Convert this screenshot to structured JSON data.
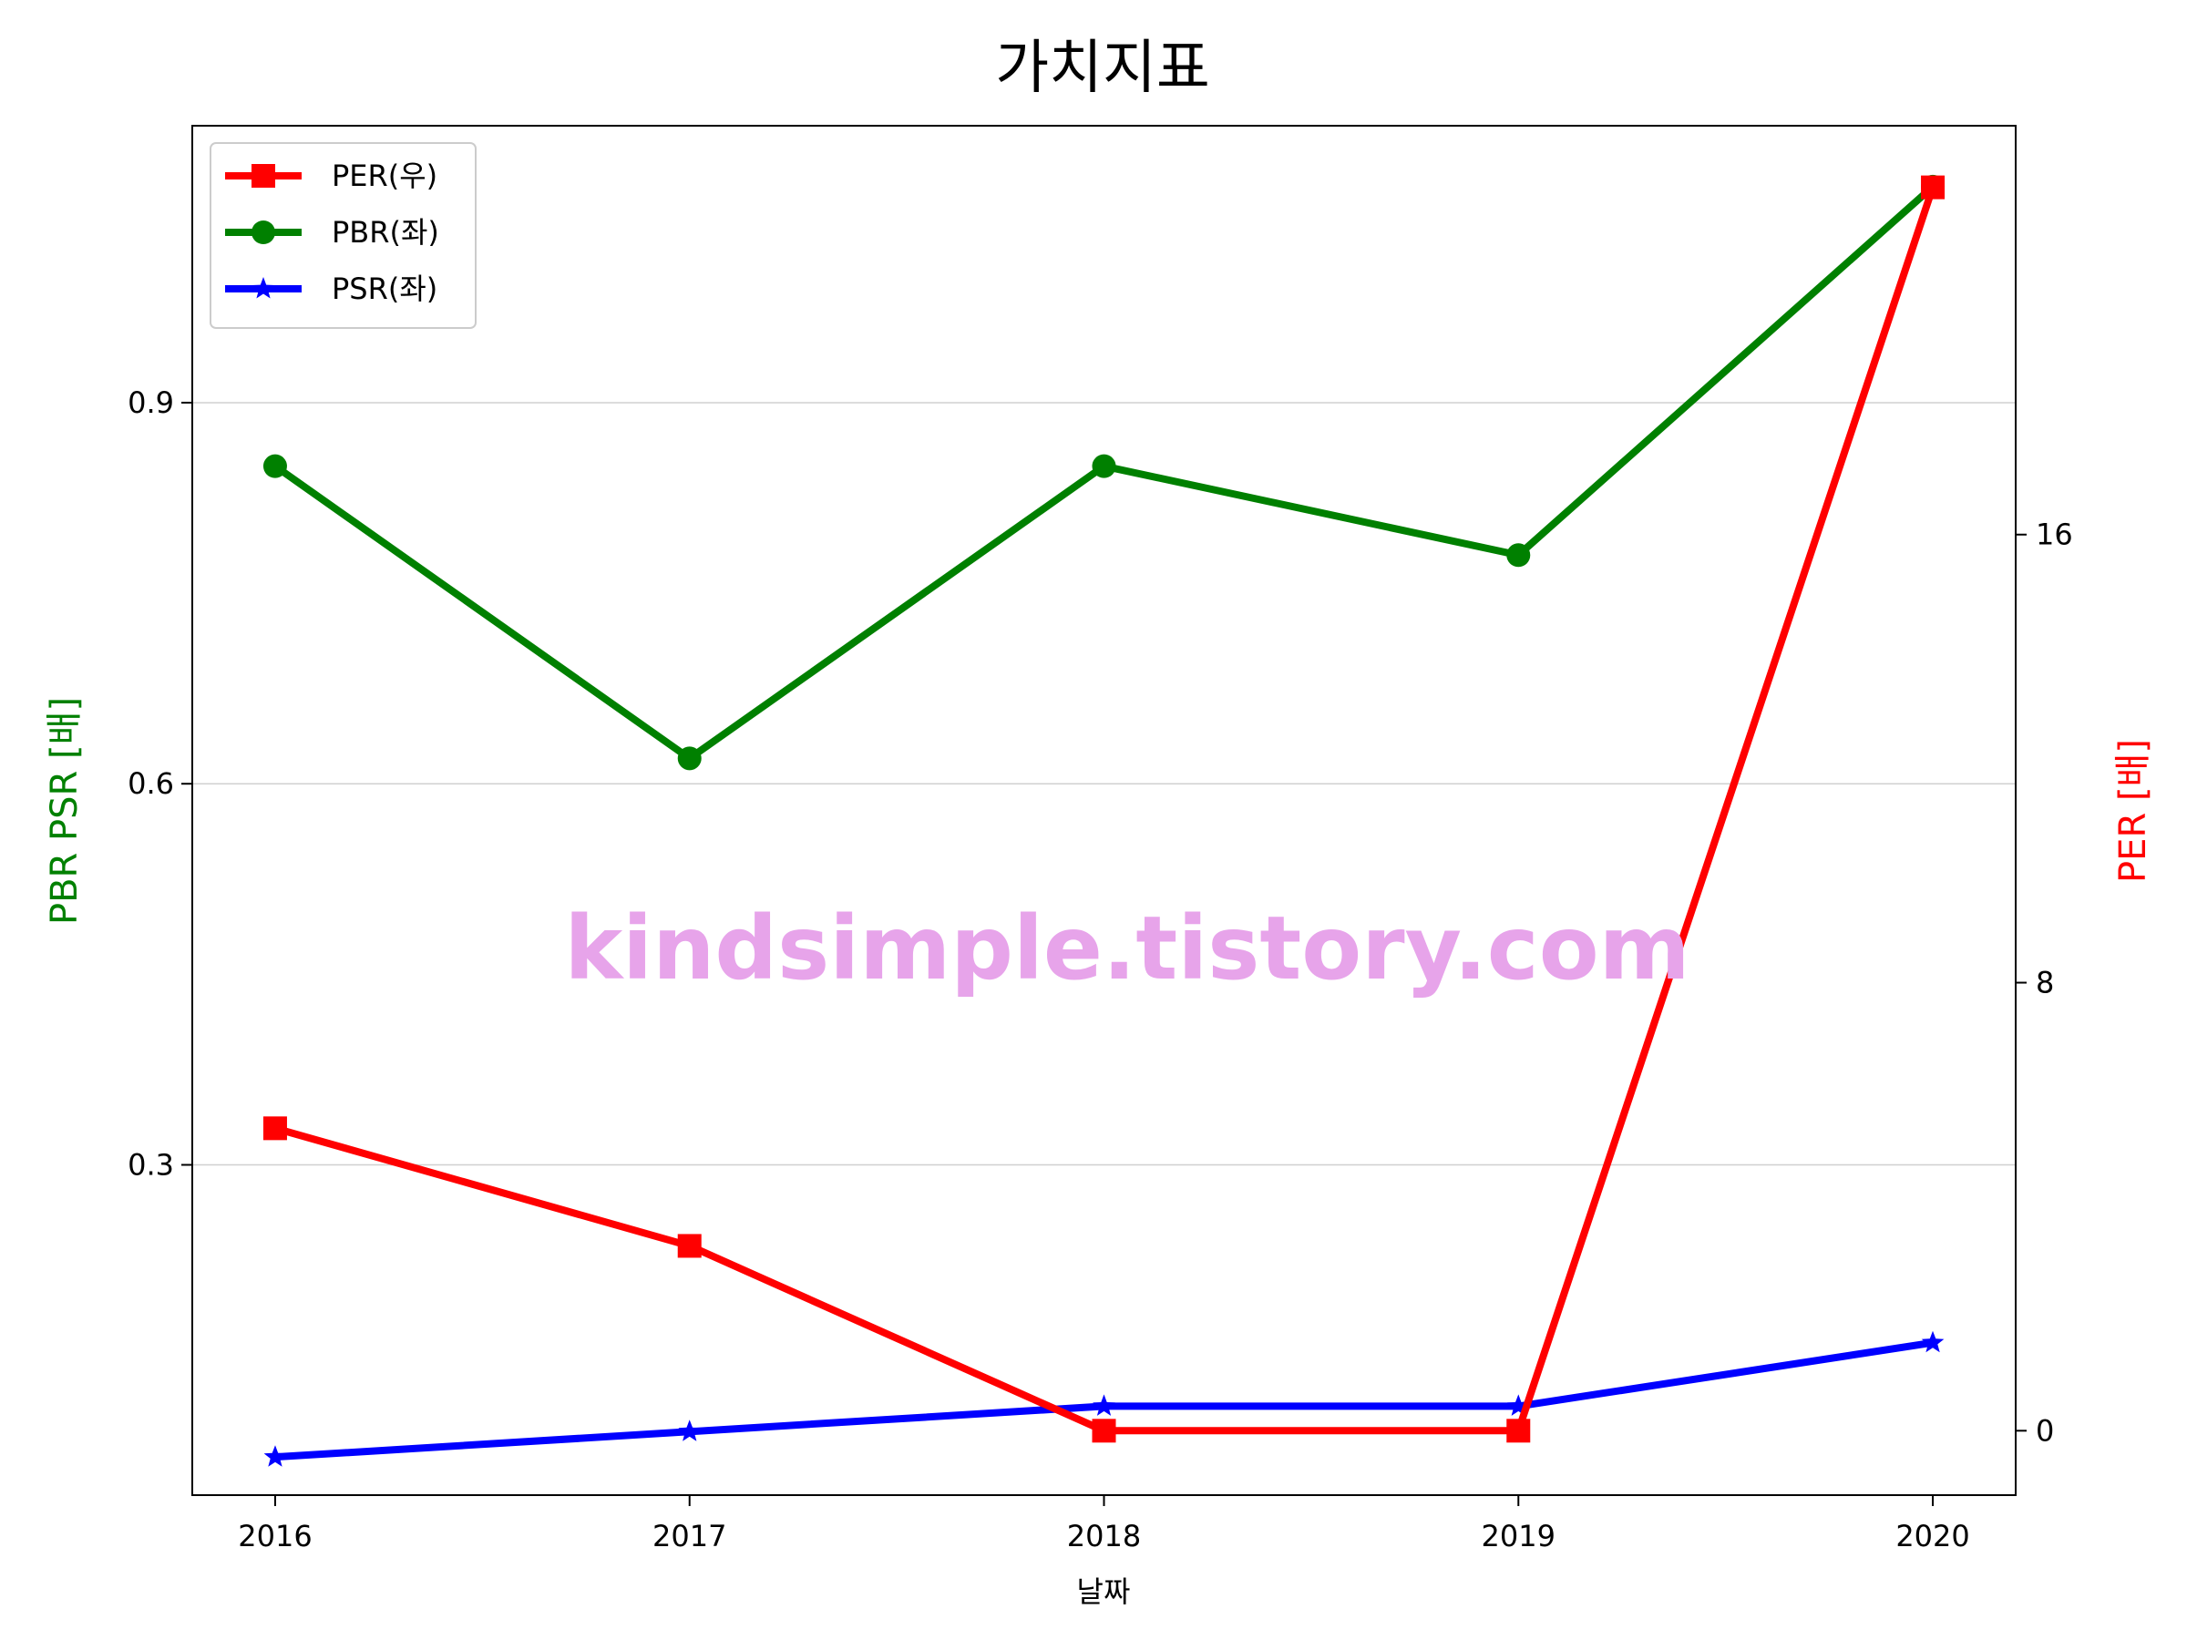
{
  "chart_data": {
    "type": "line",
    "title": "가치지표",
    "xlabel": "날짜",
    "ylabel_left": "PBR PSR [배]",
    "ylabel_right": "PER [배]",
    "x": [
      2016,
      2017,
      2018,
      2019,
      2020
    ],
    "xlim": [
      2015.8,
      2020.2
    ],
    "ylim_left": [
      0.04,
      1.118
    ],
    "ylim_right": [
      -1.15,
      23.3
    ],
    "yticks_left": [
      0.3,
      0.6,
      0.9
    ],
    "yticks_right": [
      0,
      8,
      16
    ],
    "grid": "horizontal (left axis)",
    "legend_position": "top-left",
    "series": [
      {
        "name": "PER(우)",
        "axis": "right",
        "color": "#ff0000",
        "marker": "square",
        "values": [
          5.4,
          3.3,
          0.0,
          0.0,
          22.2
        ]
      },
      {
        "name": "PBR(좌)",
        "axis": "left",
        "color": "#008000",
        "marker": "circle",
        "values": [
          0.85,
          0.62,
          0.85,
          0.78,
          1.07
        ]
      },
      {
        "name": "PSR(좌)",
        "axis": "left",
        "color": "#0000ff",
        "marker": "star",
        "values": [
          0.07,
          0.09,
          0.11,
          0.11,
          0.16
        ]
      }
    ],
    "watermark": "kindsimple.tistory.com"
  }
}
